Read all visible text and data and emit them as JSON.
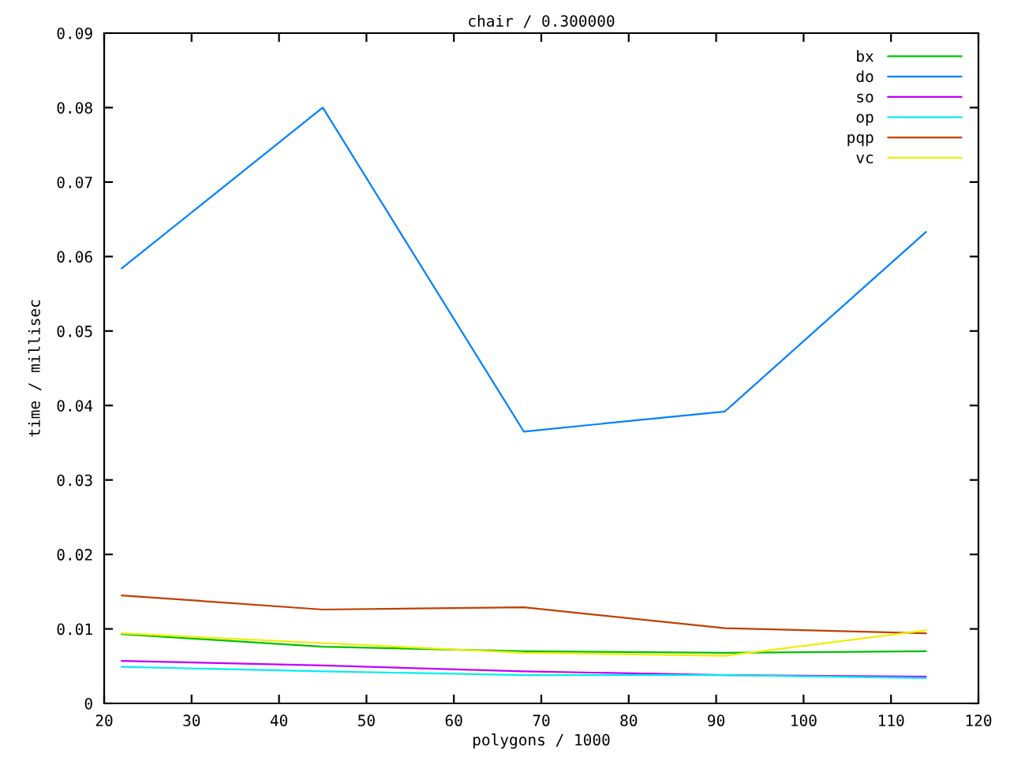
{
  "chart_data": {
    "type": "line",
    "title": "chair / 0.300000",
    "xlabel": "polygons / 1000",
    "ylabel": "time / millisec",
    "x": [
      22,
      45,
      68,
      91,
      114
    ],
    "series": [
      {
        "name": "bx",
        "color": "#00c000",
        "values": [
          0.0093,
          0.0076,
          0.007,
          0.0068,
          0.007
        ]
      },
      {
        "name": "do",
        "color": "#0080ff",
        "values": [
          0.0584,
          0.08,
          0.0365,
          0.0392,
          0.0633
        ]
      },
      {
        "name": "so",
        "color": "#c000ff",
        "values": [
          0.0057,
          0.0051,
          0.0043,
          0.0038,
          0.0036
        ]
      },
      {
        "name": "op",
        "color": "#00eeee",
        "values": [
          0.0049,
          0.0043,
          0.0038,
          0.0038,
          0.0034
        ]
      },
      {
        "name": "pqp",
        "color": "#c04000",
        "values": [
          0.0145,
          0.0126,
          0.0129,
          0.0101,
          0.0094
        ]
      },
      {
        "name": "vc",
        "color": "#eeee00",
        "values": [
          0.0094,
          0.0081,
          0.0068,
          0.0064,
          0.0098
        ]
      }
    ],
    "xlim": [
      20,
      120
    ],
    "ylim": [
      0,
      0.09
    ],
    "xticks": [
      20,
      30,
      40,
      50,
      60,
      70,
      80,
      90,
      100,
      110,
      120
    ],
    "yticks": [
      0,
      0.01,
      0.02,
      0.03,
      0.04,
      0.05,
      0.06,
      0.07,
      0.08,
      0.09
    ],
    "legend": "top right",
    "grid": false
  }
}
